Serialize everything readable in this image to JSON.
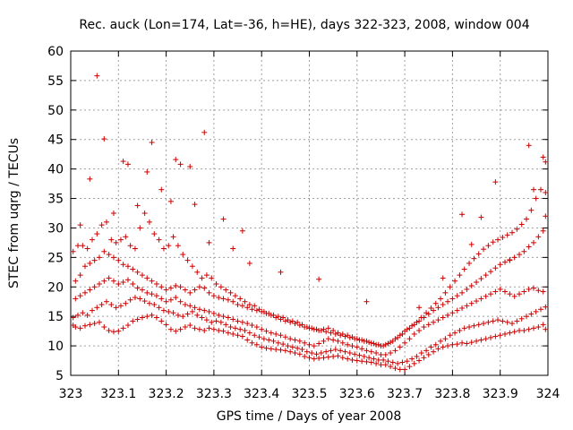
{
  "chart_data": {
    "type": "scatter",
    "title": "Rec. auck (Lon=174, Lat=-36, h=HE), days 322-323, 2008, window 004",
    "xlabel": "GPS time / Days of year 2008",
    "ylabel": "STEC from uqrg / TECUs",
    "xlim": [
      323,
      324
    ],
    "ylim": [
      5,
      60
    ],
    "xticks": [
      "323",
      "323.1",
      "323.2",
      "323.3",
      "323.4",
      "323.5",
      "323.6",
      "323.7",
      "323.8",
      "323.9",
      "324"
    ],
    "yticks": [
      "5",
      "10",
      "15",
      "20",
      "25",
      "30",
      "35",
      "40",
      "45",
      "50",
      "55",
      "60"
    ],
    "grid": true,
    "marker": "plus",
    "color": "#cc0000",
    "series": [
      {
        "x": [
          323.005,
          323.01,
          323.02,
          323.03,
          323.04,
          323.05,
          323.06,
          323.07,
          323.08,
          323.09,
          323.1,
          323.11,
          323.12,
          323.13,
          323.14,
          323.15,
          323.16,
          323.17,
          323.18,
          323.19,
          323.2,
          323.21,
          323.22,
          323.23,
          323.24,
          323.25,
          323.26,
          323.27,
          323.28,
          323.29,
          323.3,
          323.31,
          323.32,
          323.33,
          323.34,
          323.35,
          323.36,
          323.37,
          323.38,
          323.39,
          323.4,
          323.41,
          323.42,
          323.43,
          323.44,
          323.45,
          323.46,
          323.47,
          323.48,
          323.49,
          323.5,
          323.51,
          323.52,
          323.53,
          323.54,
          323.55,
          323.56,
          323.57,
          323.58,
          323.59,
          323.6,
          323.61,
          323.62,
          323.63,
          323.64,
          323.65,
          323.66,
          323.67,
          323.68,
          323.69,
          323.7,
          323.71,
          323.72,
          323.73,
          323.74,
          323.75,
          323.76,
          323.77,
          323.78,
          323.79,
          323.8,
          323.81,
          323.82,
          323.83,
          323.84,
          323.85,
          323.86,
          323.87,
          323.88,
          323.89,
          323.9,
          323.91,
          323.92,
          323.93,
          323.94,
          323.95,
          323.96,
          323.97,
          323.98,
          323.99,
          323.995
        ],
        "y": [
          13.5,
          13.2,
          13.0,
          13.4,
          13.6,
          13.8,
          14.0,
          13.2,
          12.6,
          12.4,
          12.5,
          13.0,
          13.5,
          14.2,
          14.5,
          14.8,
          15.0,
          15.2,
          14.8,
          14.2,
          13.6,
          12.8,
          12.5,
          12.8,
          13.2,
          13.5,
          13.0,
          12.8,
          12.6,
          13.0,
          12.8,
          12.6,
          12.5,
          12.2,
          12.0,
          11.8,
          11.6,
          11.0,
          10.5,
          10.2,
          9.8,
          9.6,
          9.5,
          9.4,
          9.3,
          9.2,
          9.0,
          8.8,
          8.6,
          8.2,
          8.0,
          7.8,
          7.9,
          8.0,
          8.1,
          8.2,
          8.3,
          8.0,
          7.8,
          7.6,
          7.5,
          7.4,
          7.3,
          7.2,
          7.0,
          6.8,
          6.8,
          6.5,
          6.2,
          6.0,
          6.0,
          6.5,
          7.0,
          7.5,
          8.0,
          8.5,
          9.0,
          9.5,
          9.8,
          10.0,
          10.2,
          10.3,
          10.5,
          10.4,
          10.6,
          10.8,
          11.0,
          11.2,
          11.4,
          11.6,
          11.8,
          12.0,
          12.2,
          12.4,
          12.6,
          12.6,
          12.8,
          13.0,
          13.2,
          13.6,
          12.8
        ]
      },
      {
        "x": [
          323.005,
          323.015,
          323.025,
          323.035,
          323.045,
          323.055,
          323.065,
          323.075,
          323.085,
          323.095,
          323.105,
          323.115,
          323.125,
          323.135,
          323.145,
          323.155,
          323.165,
          323.175,
          323.185,
          323.195,
          323.205,
          323.215,
          323.225,
          323.235,
          323.245,
          323.255,
          323.265,
          323.275,
          323.285,
          323.295,
          323.305,
          323.315,
          323.325,
          323.335,
          323.345,
          323.355,
          323.365,
          323.375,
          323.385,
          323.395,
          323.405,
          323.415,
          323.425,
          323.435,
          323.445,
          323.455,
          323.465,
          323.475,
          323.485,
          323.495,
          323.505,
          323.515,
          323.525,
          323.535,
          323.545,
          323.555,
          323.565,
          323.575,
          323.585,
          323.595,
          323.605,
          323.615,
          323.625,
          323.635,
          323.645,
          323.655,
          323.665,
          323.675,
          323.685,
          323.695,
          323.705,
          323.715,
          323.725,
          323.735,
          323.745,
          323.755,
          323.765,
          323.775,
          323.785,
          323.795,
          323.805,
          323.815,
          323.825,
          323.835,
          323.845,
          323.855,
          323.865,
          323.875,
          323.885,
          323.895,
          323.905,
          323.915,
          323.925,
          323.935,
          323.945,
          323.955,
          323.965,
          323.975,
          323.985,
          323.995
        ],
        "y": [
          14.8,
          15.2,
          15.6,
          15.2,
          16.0,
          16.5,
          17.0,
          17.5,
          17.0,
          16.5,
          16.8,
          17.2,
          17.8,
          18.2,
          18.0,
          17.6,
          17.2,
          17.0,
          16.5,
          16.0,
          15.8,
          15.6,
          15.2,
          15.0,
          15.4,
          15.8,
          15.2,
          14.8,
          14.4,
          14.0,
          14.2,
          14.0,
          13.6,
          13.2,
          13.0,
          12.8,
          12.6,
          12.2,
          11.8,
          11.5,
          11.2,
          11.0,
          10.8,
          10.5,
          10.3,
          10.0,
          9.8,
          9.6,
          9.4,
          9.0,
          8.8,
          8.6,
          8.8,
          9.0,
          9.2,
          9.4,
          9.2,
          9.0,
          8.8,
          8.6,
          8.4,
          8.2,
          8.0,
          7.8,
          7.6,
          7.6,
          7.4,
          7.2,
          7.0,
          7.2,
          7.4,
          7.8,
          8.2,
          8.8,
          9.2,
          9.8,
          10.2,
          10.8,
          11.2,
          11.8,
          12.2,
          12.6,
          13.0,
          13.2,
          13.4,
          13.6,
          13.8,
          14.0,
          14.2,
          14.4,
          14.2,
          14.0,
          13.8,
          14.2,
          14.6,
          15.0,
          15.4,
          15.8,
          16.2,
          16.6
        ]
      },
      {
        "x": [
          323.01,
          323.02,
          323.03,
          323.04,
          323.05,
          323.06,
          323.07,
          323.08,
          323.09,
          323.1,
          323.11,
          323.12,
          323.13,
          323.14,
          323.15,
          323.16,
          323.17,
          323.18,
          323.19,
          323.2,
          323.21,
          323.22,
          323.23,
          323.24,
          323.25,
          323.26,
          323.27,
          323.28,
          323.29,
          323.3,
          323.31,
          323.32,
          323.33,
          323.34,
          323.35,
          323.36,
          323.37,
          323.38,
          323.39,
          323.4,
          323.41,
          323.42,
          323.43,
          323.44,
          323.45,
          323.46,
          323.47,
          323.48,
          323.49,
          323.5,
          323.51,
          323.52,
          323.53,
          323.54,
          323.55,
          323.56,
          323.57,
          323.58,
          323.59,
          323.6,
          323.61,
          323.62,
          323.63,
          323.64,
          323.65,
          323.66,
          323.67,
          323.68,
          323.69,
          323.7,
          323.71,
          323.72,
          323.73,
          323.74,
          323.75,
          323.76,
          323.77,
          323.78,
          323.79,
          323.8,
          323.81,
          323.82,
          323.83,
          323.84,
          323.85,
          323.86,
          323.87,
          323.88,
          323.89,
          323.9,
          323.91,
          323.92,
          323.93,
          323.94,
          323.95,
          323.96,
          323.97,
          323.98,
          323.99
        ],
        "y": [
          18.0,
          18.5,
          19.0,
          19.5,
          20.0,
          20.5,
          21.0,
          21.5,
          21.0,
          20.5,
          20.8,
          21.2,
          20.5,
          19.8,
          19.5,
          19.0,
          18.8,
          18.5,
          18.0,
          17.5,
          17.8,
          18.2,
          17.5,
          17.0,
          16.8,
          16.5,
          16.2,
          16.0,
          15.8,
          15.5,
          15.2,
          15.0,
          14.8,
          14.5,
          14.2,
          14.0,
          13.8,
          13.5,
          13.2,
          12.8,
          12.5,
          12.2,
          12.0,
          11.8,
          11.5,
          11.2,
          11.0,
          10.8,
          10.5,
          10.2,
          10.0,
          10.4,
          10.8,
          11.2,
          11.0,
          10.8,
          10.5,
          10.2,
          10.0,
          9.8,
          9.5,
          9.2,
          9.0,
          8.8,
          8.5,
          8.5,
          8.8,
          9.2,
          9.8,
          10.5,
          11.2,
          12.0,
          12.6,
          13.2,
          13.6,
          14.0,
          14.4,
          14.8,
          15.2,
          15.6,
          16.0,
          16.4,
          16.8,
          17.2,
          17.6,
          18.0,
          18.4,
          18.8,
          19.2,
          19.6,
          19.2,
          18.8,
          18.4,
          18.8,
          19.2,
          19.6,
          19.8,
          19.4,
          19.2
        ]
      },
      {
        "x": [
          323.01,
          323.02,
          323.03,
          323.04,
          323.05,
          323.06,
          323.07,
          323.08,
          323.09,
          323.1,
          323.11,
          323.12,
          323.13,
          323.14,
          323.15,
          323.16,
          323.17,
          323.18,
          323.19,
          323.2,
          323.21,
          323.22,
          323.23,
          323.24,
          323.25,
          323.26,
          323.27,
          323.28,
          323.29,
          323.3,
          323.31,
          323.32,
          323.33,
          323.34,
          323.35,
          323.36,
          323.37,
          323.38,
          323.39,
          323.4,
          323.41,
          323.42,
          323.43,
          323.44,
          323.45,
          323.46,
          323.47,
          323.48,
          323.49,
          323.5,
          323.51,
          323.52,
          323.53,
          323.54,
          323.55,
          323.56,
          323.57,
          323.58,
          323.59,
          323.6,
          323.61,
          323.62,
          323.63,
          323.64,
          323.65,
          323.66,
          323.67,
          323.68,
          323.69,
          323.7,
          323.71,
          323.72,
          323.73,
          323.74,
          323.75,
          323.76,
          323.77,
          323.78,
          323.79,
          323.8,
          323.81,
          323.82,
          323.83,
          323.84,
          323.85,
          323.86,
          323.87,
          323.88,
          323.89,
          323.9,
          323.91,
          323.92,
          323.93,
          323.94,
          323.95,
          323.96,
          323.97,
          323.98,
          323.99
        ],
        "y": [
          21.0,
          22.0,
          23.5,
          24.0,
          24.5,
          25.0,
          26.0,
          25.5,
          25.0,
          24.5,
          23.8,
          23.5,
          23.0,
          22.5,
          22.0,
          21.5,
          21.0,
          20.5,
          20.0,
          19.5,
          19.8,
          20.2,
          20.0,
          19.5,
          19.0,
          19.5,
          20.0,
          19.8,
          19.0,
          18.5,
          18.2,
          18.0,
          17.8,
          17.5,
          17.0,
          16.8,
          16.5,
          16.2,
          16.0,
          15.8,
          15.5,
          15.2,
          14.8,
          14.5,
          14.2,
          14.0,
          13.8,
          13.5,
          13.2,
          13.0,
          12.8,
          12.6,
          12.8,
          13.0,
          12.6,
          12.2,
          12.0,
          11.8,
          11.5,
          11.2,
          11.0,
          10.8,
          10.5,
          10.2,
          10.0,
          10.2,
          10.6,
          11.2,
          11.8,
          12.5,
          13.0,
          13.6,
          14.2,
          14.8,
          15.4,
          16.0,
          16.5,
          17.0,
          17.5,
          18.0,
          18.5,
          19.0,
          19.6,
          20.2,
          20.8,
          21.4,
          22.0,
          22.6,
          23.2,
          23.8,
          24.2,
          24.6,
          25.0,
          25.5,
          26.0,
          26.8,
          27.5,
          28.5,
          29.5
        ]
      },
      {
        "x": [
          323.005,
          323.015,
          323.025,
          323.035,
          323.045,
          323.055,
          323.065,
          323.075,
          323.085,
          323.095,
          323.105,
          323.115,
          323.125,
          323.135,
          323.145,
          323.155,
          323.165,
          323.175,
          323.185,
          323.195,
          323.205,
          323.215,
          323.225,
          323.235,
          323.245,
          323.255,
          323.265,
          323.275,
          323.285,
          323.295,
          323.305,
          323.315,
          323.325,
          323.335,
          323.345,
          323.355,
          323.365,
          323.375,
          323.385,
          323.395,
          323.405,
          323.415,
          323.425,
          323.435,
          323.445,
          323.455,
          323.465,
          323.475,
          323.485,
          323.495,
          323.505,
          323.515,
          323.525,
          323.535,
          323.545,
          323.555,
          323.565,
          323.575,
          323.585,
          323.595,
          323.605,
          323.615,
          323.625,
          323.635,
          323.645,
          323.655,
          323.665,
          323.675,
          323.685,
          323.695,
          323.705,
          323.715,
          323.725,
          323.735,
          323.745,
          323.755,
          323.765,
          323.775,
          323.785,
          323.795,
          323.805,
          323.815,
          323.825,
          323.835,
          323.845,
          323.855,
          323.865,
          323.875,
          323.885,
          323.895,
          323.905,
          323.915,
          323.925,
          323.935,
          323.945,
          323.955,
          323.965,
          323.975,
          323.985,
          323.995
        ],
        "y": [
          26.0,
          27.0,
          27.0,
          26.5,
          28.0,
          29.0,
          30.5,
          31.0,
          28.0,
          27.5,
          28.0,
          28.5,
          27.0,
          26.5,
          30.0,
          32.5,
          31.0,
          29.0,
          28.0,
          26.5,
          27.0,
          28.5,
          27.0,
          25.5,
          24.5,
          23.5,
          22.5,
          21.5,
          22.0,
          21.5,
          20.5,
          20.0,
          19.5,
          19.0,
          18.5,
          18.0,
          17.5,
          17.0,
          16.8,
          16.2,
          15.8,
          15.5,
          15.2,
          15.0,
          14.8,
          14.4,
          14.2,
          14.0,
          13.6,
          13.2,
          13.0,
          12.8,
          12.6,
          12.4,
          12.2,
          12.0,
          11.8,
          11.6,
          11.4,
          11.2,
          11.0,
          10.8,
          10.6,
          10.4,
          10.2,
          10.0,
          10.4,
          10.8,
          11.4,
          12.0,
          12.8,
          13.4,
          14.0,
          14.8,
          15.6,
          16.4,
          17.2,
          18.0,
          19.0,
          20.0,
          21.0,
          22.0,
          23.0,
          24.0,
          24.8,
          25.6,
          26.4,
          27.0,
          27.6,
          28.0,
          28.4,
          28.8,
          29.2,
          29.8,
          30.6,
          31.5,
          33.0,
          35.0,
          36.5,
          32.0
        ]
      },
      {
        "x": [
          323.02,
          323.04,
          323.055,
          323.07,
          323.09,
          323.11,
          323.12,
          323.14,
          323.16,
          323.17,
          323.19,
          323.21,
          323.22,
          323.23,
          323.25,
          323.26,
          323.28,
          323.29,
          323.32,
          323.34,
          323.36,
          323.375,
          323.44,
          323.52,
          323.62,
          323.73,
          323.78,
          323.82,
          323.84,
          323.86,
          323.89,
          323.92,
          323.96,
          323.97,
          323.99,
          323.995,
          323.995
        ],
        "y": [
          30.5,
          38.3,
          55.8,
          45.1,
          32.5,
          41.3,
          40.8,
          33.8,
          39.5,
          44.5,
          36.5,
          34.5,
          41.6,
          40.8,
          40.4,
          34.0,
          46.2,
          27.5,
          31.5,
          26.5,
          29.5,
          24.0,
          22.5,
          21.3,
          17.5,
          16.5,
          21.5,
          32.3,
          27.2,
          31.8,
          37.8,
          24.5,
          44.0,
          36.5,
          42.0,
          41.2,
          36.0
        ]
      }
    ]
  }
}
